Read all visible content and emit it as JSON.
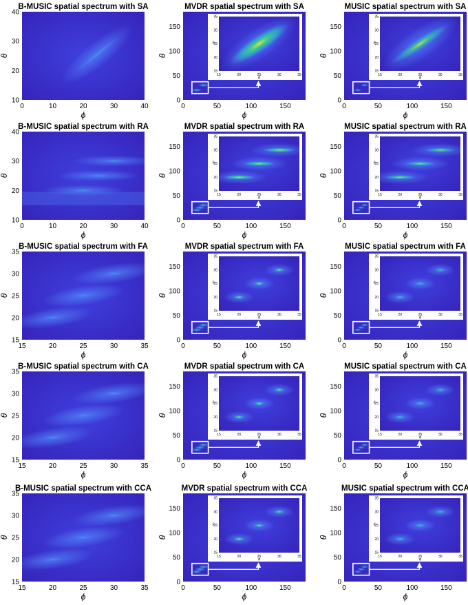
{
  "chart_data": [
    {
      "type": "heatmap",
      "title": "B-MUSIC spatial spectrum with SA",
      "xlabel": "ϕ",
      "ylabel": "θ",
      "xlim": [
        0,
        40
      ],
      "ylim": [
        10,
        40
      ],
      "xticks": [
        0,
        10,
        20,
        30,
        40
      ],
      "yticks": [
        10,
        20,
        30,
        40
      ],
      "peaks": [
        [
          18,
          20
        ],
        [
          31,
          31
        ]
      ],
      "ridge": true,
      "inset": null
    },
    {
      "type": "heatmap",
      "title": "MVDR spatial spectrum with SA",
      "xlabel": "ϕ",
      "ylabel": "θ",
      "xlim": [
        0,
        180
      ],
      "ylim": [
        0,
        180
      ],
      "xticks": [
        0,
        50,
        100,
        150
      ],
      "yticks": [
        0,
        50,
        100,
        150
      ],
      "peaks": [
        [
          20,
          20
        ],
        [
          30,
          30
        ]
      ],
      "ridge": true,
      "inset": {
        "xlim": [
          15,
          35
        ],
        "ylim": [
          15,
          35
        ],
        "xticks": [
          15,
          20,
          25,
          30,
          35
        ],
        "yticks": [
          15,
          20,
          25,
          30,
          35
        ],
        "xlabel": "ϕ",
        "ylabel": "θ",
        "intensity": "strong"
      }
    },
    {
      "type": "heatmap",
      "title": "MUSIC spatial spectrum with SA",
      "xlabel": "ϕ",
      "ylabel": "θ",
      "xlim": [
        0,
        180
      ],
      "ylim": [
        0,
        180
      ],
      "xticks": [
        0,
        50,
        100,
        150
      ],
      "yticks": [
        0,
        50,
        100,
        150
      ],
      "peaks": [
        [
          20,
          20
        ],
        [
          30,
          30
        ]
      ],
      "ridge": true,
      "inset": {
        "xlim": [
          15,
          35
        ],
        "ylim": [
          15,
          35
        ],
        "xticks": [
          15,
          20,
          25,
          30,
          35
        ],
        "yticks": [
          15,
          20,
          25,
          30,
          35
        ],
        "xlabel": "ϕ",
        "ylabel": "θ",
        "intensity": "medium"
      }
    },
    {
      "type": "heatmap",
      "title": "B-MUSIC spatial spectrum with RA",
      "xlabel": "ϕ",
      "ylabel": "θ",
      "xlim": [
        0,
        40
      ],
      "ylim": [
        10,
        40
      ],
      "xticks": [
        0,
        10,
        20,
        30,
        40
      ],
      "yticks": [
        10,
        20,
        30,
        40
      ],
      "peaks": [
        [
          20,
          20
        ],
        [
          25,
          25
        ],
        [
          30,
          30
        ]
      ],
      "ridge": false,
      "inset": null
    },
    {
      "type": "heatmap",
      "title": "MVDR spatial spectrum with RA",
      "xlabel": "ϕ",
      "ylabel": "θ",
      "xlim": [
        0,
        180
      ],
      "ylim": [
        0,
        180
      ],
      "xticks": [
        0,
        50,
        100,
        150
      ],
      "yticks": [
        0,
        50,
        100,
        150
      ],
      "peaks": [
        [
          20,
          20
        ],
        [
          25,
          25
        ],
        [
          30,
          30
        ]
      ],
      "ridge": false,
      "inset": {
        "xlim": [
          15,
          35
        ],
        "ylim": [
          15,
          35
        ],
        "xticks": [
          15,
          20,
          25,
          30,
          35
        ],
        "yticks": [
          15,
          20,
          25,
          30,
          35
        ],
        "xlabel": "ϕ",
        "ylabel": "θ",
        "intensity": "strong"
      }
    },
    {
      "type": "heatmap",
      "title": "MUSIC spatial spectrum with RA",
      "xlabel": "ϕ",
      "ylabel": "θ",
      "xlim": [
        0,
        180
      ],
      "ylim": [
        0,
        180
      ],
      "xticks": [
        0,
        50,
        100,
        150
      ],
      "yticks": [
        0,
        50,
        100,
        150
      ],
      "peaks": [
        [
          20,
          20
        ],
        [
          25,
          25
        ],
        [
          30,
          30
        ]
      ],
      "ridge": false,
      "inset": {
        "xlim": [
          15,
          35
        ],
        "ylim": [
          15,
          35
        ],
        "xticks": [
          15,
          20,
          25,
          30,
          35
        ],
        "yticks": [
          15,
          20,
          25,
          30,
          35
        ],
        "xlabel": "ϕ",
        "ylabel": "θ",
        "intensity": "medium"
      }
    },
    {
      "type": "heatmap",
      "title": "B-MUSIC spatial spectrum with FA",
      "xlabel": "ϕ",
      "ylabel": "θ",
      "xlim": [
        15,
        35
      ],
      "ylim": [
        15,
        35
      ],
      "xticks": [
        15,
        20,
        25,
        30,
        35
      ],
      "yticks": [
        15,
        20,
        25,
        30,
        35
      ],
      "peaks": [
        [
          20,
          20
        ],
        [
          25,
          25
        ],
        [
          30,
          30
        ]
      ],
      "ridge": false,
      "inset": null
    },
    {
      "type": "heatmap",
      "title": "MVDR spatial spectrum with FA",
      "xlabel": "ϕ",
      "ylabel": "θ",
      "xlim": [
        0,
        180
      ],
      "ylim": [
        0,
        180
      ],
      "xticks": [
        0,
        50,
        100,
        150
      ],
      "yticks": [
        0,
        50,
        100,
        150
      ],
      "peaks": [
        [
          20,
          20
        ],
        [
          25,
          25
        ],
        [
          30,
          30
        ]
      ],
      "ridge": false,
      "inset": {
        "xlim": [
          15,
          35
        ],
        "ylim": [
          15,
          35
        ],
        "xticks": [
          15,
          20,
          25,
          30,
          35
        ],
        "yticks": [
          15,
          20,
          25,
          30,
          35
        ],
        "xlabel": "ϕ",
        "ylabel": "θ",
        "intensity": "medium"
      }
    },
    {
      "type": "heatmap",
      "title": "MUSIC spatial spectrum with FA",
      "xlabel": "ϕ",
      "ylabel": "θ",
      "xlim": [
        0,
        180
      ],
      "ylim": [
        0,
        180
      ],
      "xticks": [
        0,
        50,
        100,
        150
      ],
      "yticks": [
        0,
        50,
        100,
        150
      ],
      "peaks": [
        [
          20,
          20
        ],
        [
          25,
          25
        ],
        [
          30,
          30
        ]
      ],
      "ridge": false,
      "inset": {
        "xlim": [
          15,
          35
        ],
        "ylim": [
          15,
          35
        ],
        "xticks": [
          15,
          20,
          25,
          30,
          35
        ],
        "yticks": [
          15,
          20,
          25,
          30,
          35
        ],
        "xlabel": "ϕ",
        "ylabel": "θ",
        "intensity": "weak"
      }
    },
    {
      "type": "heatmap",
      "title": "B-MUSIC spatial spectrum with CA",
      "xlabel": "ϕ",
      "ylabel": "θ",
      "xlim": [
        15,
        35
      ],
      "ylim": [
        15,
        35
      ],
      "xticks": [
        15,
        20,
        25,
        30,
        35
      ],
      "yticks": [
        15,
        20,
        25,
        30,
        35
      ],
      "peaks": [
        [
          20,
          20
        ],
        [
          25,
          25
        ],
        [
          30,
          30
        ]
      ],
      "ridge": false,
      "inset": null
    },
    {
      "type": "heatmap",
      "title": "MVDR spatial spectrum with CA",
      "xlabel": "ϕ",
      "ylabel": "θ",
      "xlim": [
        0,
        180
      ],
      "ylim": [
        0,
        180
      ],
      "xticks": [
        0,
        50,
        100,
        150
      ],
      "yticks": [
        0,
        50,
        100,
        150
      ],
      "peaks": [
        [
          20,
          20
        ],
        [
          25,
          25
        ],
        [
          30,
          30
        ]
      ],
      "ridge": false,
      "inset": {
        "xlim": [
          15,
          35
        ],
        "ylim": [
          15,
          35
        ],
        "xticks": [
          15,
          20,
          25,
          30,
          35
        ],
        "yticks": [
          15,
          20,
          25,
          30,
          35
        ],
        "xlabel": "ϕ",
        "ylabel": "θ",
        "intensity": "medium"
      }
    },
    {
      "type": "heatmap",
      "title": "MUSIC spatial spectrum with CA",
      "xlabel": "ϕ",
      "ylabel": "θ",
      "xlim": [
        0,
        180
      ],
      "ylim": [
        0,
        180
      ],
      "xticks": [
        0,
        50,
        100,
        150
      ],
      "yticks": [
        0,
        50,
        100,
        150
      ],
      "peaks": [
        [
          20,
          20
        ],
        [
          25,
          25
        ],
        [
          30,
          30
        ]
      ],
      "ridge": false,
      "inset": {
        "xlim": [
          15,
          35
        ],
        "ylim": [
          15,
          35
        ],
        "xticks": [
          15,
          20,
          25,
          30,
          35
        ],
        "yticks": [
          15,
          20,
          25,
          30,
          35
        ],
        "xlabel": "ϕ",
        "ylabel": "θ",
        "intensity": "weak"
      }
    },
    {
      "type": "heatmap",
      "title": "B-MUSIC spatial spectrum with CCA",
      "xlabel": "ϕ",
      "ylabel": "θ",
      "xlim": [
        15,
        35
      ],
      "ylim": [
        15,
        35
      ],
      "xticks": [
        15,
        20,
        25,
        30,
        35
      ],
      "yticks": [
        15,
        20,
        25,
        30,
        35
      ],
      "peaks": [
        [
          20,
          20
        ],
        [
          25,
          25
        ],
        [
          30,
          30
        ]
      ],
      "ridge": false,
      "inset": null
    },
    {
      "type": "heatmap",
      "title": "MVDR spatial spectrum with CCA",
      "xlabel": "ϕ",
      "ylabel": "θ",
      "xlim": [
        0,
        180
      ],
      "ylim": [
        0,
        180
      ],
      "xticks": [
        0,
        50,
        100,
        150
      ],
      "yticks": [
        0,
        50,
        100,
        150
      ],
      "peaks": [
        [
          20,
          20
        ],
        [
          25,
          25
        ],
        [
          30,
          30
        ]
      ],
      "ridge": false,
      "inset": {
        "xlim": [
          15,
          35
        ],
        "ylim": [
          15,
          35
        ],
        "xticks": [
          15,
          20,
          25,
          30,
          35
        ],
        "yticks": [
          15,
          20,
          25,
          30,
          35
        ],
        "xlabel": "ϕ",
        "ylabel": "θ",
        "intensity": "medium"
      }
    },
    {
      "type": "heatmap",
      "title": "MUSIC spatial spectrum with CCA",
      "xlabel": "ϕ",
      "ylabel": "θ",
      "xlim": [
        0,
        180
      ],
      "ylim": [
        0,
        180
      ],
      "xticks": [
        0,
        50,
        100,
        150
      ],
      "yticks": [
        0,
        50,
        100,
        150
      ],
      "peaks": [
        [
          20,
          20
        ],
        [
          25,
          25
        ],
        [
          30,
          30
        ]
      ],
      "ridge": false,
      "inset": {
        "xlim": [
          15,
          35
        ],
        "ylim": [
          15,
          35
        ],
        "xticks": [
          15,
          20,
          25,
          30,
          35
        ],
        "yticks": [
          15,
          20,
          25,
          30,
          35
        ],
        "xlabel": "ϕ",
        "ylabel": "θ",
        "intensity": "weak"
      }
    }
  ],
  "colors": {
    "background_dark": "#3522b8",
    "background_mid": "#3f3fde",
    "glow": "#4f7cf2",
    "peak_low": "#27b7c8",
    "peak_mid": "#3fcf8a",
    "peak_high": "#e0e23a",
    "frame": "#ffffff",
    "text": "#000000"
  }
}
